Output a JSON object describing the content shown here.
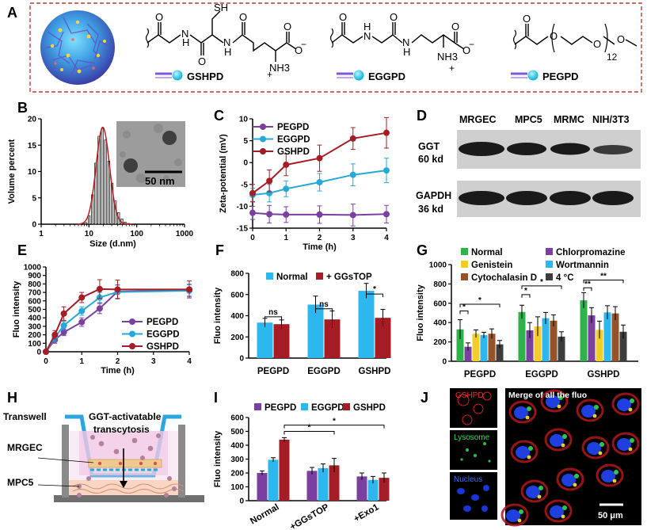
{
  "figure_title": "Multi-panel figure",
  "panel_labels": [
    "A",
    "B",
    "C",
    "D",
    "E",
    "F",
    "G",
    "H",
    "I",
    "J"
  ],
  "panel_a": {
    "molecules": [
      {
        "name": "GSHPD",
        "thiol": "SH",
        "charge_minus": "−",
        "charge_plus": "+",
        "amine": "NH3"
      },
      {
        "name": "EGGPD",
        "charge_minus": "−",
        "charge_plus": "+",
        "amine": "NH3"
      },
      {
        "name": "PEGPD",
        "repeat": "12"
      }
    ],
    "atoms": {
      "H": "H",
      "N": "N",
      "O": "O"
    }
  },
  "panel_b": {
    "inset_scale": "50 nm"
  },
  "panel_d": {
    "columns": [
      "MRGEC",
      "MPC5",
      "MRMC",
      "NIH/3T3"
    ],
    "rows": [
      {
        "name": "GGT",
        "kd": "60 kd"
      },
      {
        "name": "GAPDH",
        "kd": "36 kd"
      }
    ]
  },
  "panel_g_sig": [
    "*",
    "*",
    "*",
    "*",
    "**",
    "**"
  ],
  "panel_h": {
    "transwell": "Transwell",
    "caption_line1": "GGT-activatable",
    "caption_line2": "transcytosis",
    "top_cell": "MRGEC",
    "bottom_cell": "MPC5"
  },
  "panel_j": {
    "channels": [
      "GSHPD",
      "Lysosome",
      "Nucleus"
    ],
    "merge_title": "Merge of all the fluo",
    "scale": "50 μm"
  },
  "chart_data": [
    {
      "id": "B",
      "type": "bar",
      "title": "",
      "xlabel": "Size (d.nm)",
      "ylabel": "Volume percent",
      "x_scale": "log",
      "xlim": [
        1,
        1000
      ],
      "ylim": [
        0,
        20
      ],
      "x_ticks": [
        "1",
        "10",
        "100",
        "1000"
      ],
      "y_ticks": [
        "0",
        "5",
        "10",
        "15",
        "20"
      ],
      "peak_center": 19.5,
      "peak_height": 18.4,
      "series": [
        {
          "name": "histogram",
          "x": [
            8.6,
            10.1,
            11.8,
            13.8,
            16.2,
            19,
            22.2,
            26,
            30.5,
            35.7,
            41.8,
            49,
            57.3,
            67.1
          ],
          "values": [
            0.3,
            1.6,
            5.6,
            11.6,
            16.7,
            18.2,
            16.0,
            12.0,
            7.8,
            4.4,
            2.2,
            1.0,
            0.4,
            0.15
          ]
        }
      ]
    },
    {
      "id": "C",
      "type": "line",
      "xlabel": "Time (h)",
      "ylabel": "Zeta-potential (mV)",
      "xlim": [
        0,
        4
      ],
      "ylim": [
        -15,
        10
      ],
      "x_ticks": [
        "0",
        "1",
        "2",
        "3",
        "4"
      ],
      "y_ticks": [
        "10",
        "5",
        "0",
        "-5",
        "-10",
        "-15"
      ],
      "x": [
        0,
        0.5,
        1,
        2,
        3,
        4
      ],
      "series": [
        {
          "name": "PEGPD",
          "color": "#7b3fa0",
          "values": [
            -11.5,
            -11.8,
            -11.9,
            -11.9,
            -12.0,
            -11.8
          ],
          "errors": [
            1.5,
            2,
            1.8,
            2,
            2.5,
            2
          ]
        },
        {
          "name": "EGGPD",
          "color": "#25a9d6",
          "values": [
            -7.4,
            -7.0,
            -6.0,
            -4.5,
            -2.8,
            -1.8
          ],
          "errors": [
            1.5,
            2,
            1.8,
            2,
            2.5,
            2.8
          ]
        },
        {
          "name": "GSHPD",
          "color": "#a51c24",
          "values": [
            -7.0,
            -4.2,
            -0.5,
            1.0,
            5.5,
            6.8
          ],
          "errors": [
            2,
            2.5,
            2.5,
            3,
            2.5,
            3.5
          ]
        }
      ]
    },
    {
      "id": "E",
      "type": "line",
      "xlabel": "Time (h)",
      "ylabel": "Fluo intensity",
      "xlim": [
        0,
        4
      ],
      "ylim": [
        0,
        1000
      ],
      "x_ticks": [
        "0",
        "1",
        "2",
        "3",
        "4"
      ],
      "y_ticks": [
        "0",
        "100",
        "200",
        "300",
        "400",
        "500",
        "600",
        "700",
        "800",
        "900",
        "1000"
      ],
      "x": [
        0,
        0.25,
        0.5,
        1,
        1.5,
        2,
        4
      ],
      "series": [
        {
          "name": "PEGPD",
          "color": "#7b3fa0",
          "values": [
            0,
            140,
            230,
            350,
            510,
            710,
            725
          ],
          "errors": [
            20,
            40,
            40,
            50,
            60,
            80,
            70
          ]
        },
        {
          "name": "EGGPD",
          "color": "#25a9d6",
          "values": [
            0,
            170,
            310,
            480,
            640,
            705,
            720
          ],
          "errors": [
            20,
            50,
            50,
            50,
            60,
            80,
            70
          ]
        },
        {
          "name": "GSHPD",
          "color": "#a51c24",
          "values": [
            0,
            200,
            450,
            640,
            740,
            735,
            735
          ],
          "errors": [
            20,
            50,
            80,
            60,
            110,
            110,
            100
          ]
        }
      ]
    },
    {
      "id": "F",
      "type": "bar",
      "ylabel": "Fluo intensity",
      "ylim": [
        0,
        800
      ],
      "y_ticks": [
        "0",
        "200",
        "400",
        "600",
        "800"
      ],
      "categories": [
        "PEGPD",
        "EGGPD",
        "GSHPD"
      ],
      "series": [
        {
          "name": "Normal",
          "color": "#2db7ef",
          "values": [
            335,
            505,
            635
          ],
          "errors": [
            40,
            80,
            70
          ]
        },
        {
          "name": "+ GGsTOP",
          "color": "#a51c24",
          "values": [
            320,
            365,
            380
          ],
          "errors": [
            40,
            80,
            80
          ]
        }
      ],
      "significance": [
        "ns",
        "ns",
        "*"
      ]
    },
    {
      "id": "G",
      "type": "bar",
      "ylabel": "Fluo intensity",
      "ylim": [
        0,
        1000
      ],
      "y_ticks": [
        "0",
        "200",
        "400",
        "600",
        "800",
        "1000"
      ],
      "categories": [
        "PEGPD",
        "EGGPD",
        "GSHPD"
      ],
      "series": [
        {
          "name": "Normal",
          "color": "#30b24b",
          "values": [
            330,
            510,
            630
          ],
          "errors": [
            100,
            70,
            80
          ]
        },
        {
          "name": "Chlorpromazine",
          "color": "#7b3fa0",
          "values": [
            150,
            320,
            475
          ],
          "errors": [
            40,
            80,
            80
          ]
        },
        {
          "name": "Genistein",
          "color": "#f2cd2a",
          "values": [
            285,
            360,
            325
          ],
          "errors": [
            40,
            100,
            90
          ]
        },
        {
          "name": "Wortmannin",
          "color": "#2db7ef",
          "values": [
            270,
            445,
            505
          ],
          "errors": [
            30,
            60,
            70
          ]
        },
        {
          "name": "Cytochalasin D",
          "color": "#955329",
          "values": [
            285,
            420,
            495
          ],
          "errors": [
            50,
            60,
            70
          ]
        },
        {
          "name": "4 °C",
          "color": "#3d3d3d",
          "values": [
            175,
            255,
            305
          ],
          "errors": [
            40,
            50,
            70
          ]
        }
      ]
    },
    {
      "id": "I",
      "type": "bar",
      "ylabel": "Fluo intensity",
      "ylim": [
        0,
        600
      ],
      "y_ticks": [
        "0",
        "100",
        "200",
        "300",
        "400",
        "500",
        "600"
      ],
      "categories": [
        "Normal",
        "+GGsTOP",
        "+Exo1"
      ],
      "series": [
        {
          "name": "PEGPD",
          "color": "#7b3fa0",
          "values": [
            200,
            215,
            175
          ],
          "errors": [
            15,
            25,
            25
          ]
        },
        {
          "name": "EGGPD",
          "color": "#2db7ef",
          "values": [
            295,
            235,
            150
          ],
          "errors": [
            15,
            30,
            25
          ]
        },
        {
          "name": "GSHPD",
          "color": "#a51c24",
          "values": [
            440,
            255,
            165
          ],
          "errors": [
            15,
            50,
            35
          ]
        }
      ],
      "significance": [
        "*",
        "*"
      ]
    }
  ]
}
